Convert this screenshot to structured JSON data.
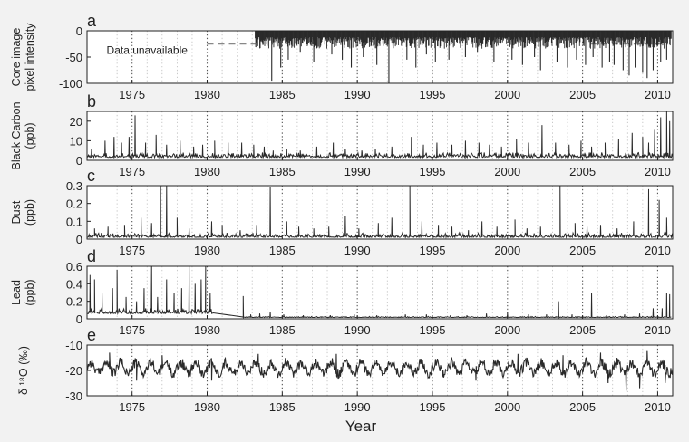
{
  "figure": {
    "background": "#f2f2f2",
    "line_color": "#2a2a2a",
    "x_axis_label": "Year"
  },
  "chart_data": [
    {
      "panel": "a",
      "type": "line",
      "ylabel": [
        "Core image",
        "pixel intensity"
      ],
      "xlim": [
        1972,
        2011
      ],
      "ylim": [
        -100,
        0
      ],
      "yticks": [
        0,
        -50,
        -100
      ],
      "xticks": [
        1975,
        1980,
        1985,
        1990,
        1995,
        2000,
        2005,
        2010
      ],
      "grid": "vertical-dotted",
      "annotation": "Data unavailable",
      "series": [
        {
          "style": "dashed",
          "color": "#888888",
          "x": [
            1980,
            1983.2
          ],
          "y": [
            -25,
            -25
          ]
        },
        {
          "style": "dashed",
          "color": "#888888",
          "x": [
            2005.5,
            2010.7
          ],
          "y": [
            -25,
            -25
          ]
        },
        {
          "style": "solid",
          "x_start": 1983.2,
          "x_end": 2010.9,
          "base": -12,
          "spikes": [
            [
              1984.3,
              -95
            ],
            [
              1984.9,
              -70
            ],
            [
              1985.4,
              -55
            ],
            [
              1986.2,
              -40
            ],
            [
              1987.1,
              -60
            ],
            [
              1988.3,
              -45
            ],
            [
              1989.0,
              -55
            ],
            [
              1989.6,
              -70
            ],
            [
              1990.4,
              -50
            ],
            [
              1991.3,
              -65
            ],
            [
              1992.1,
              -100
            ],
            [
              1993.3,
              -55
            ],
            [
              1993.9,
              -70
            ],
            [
              1994.6,
              -45
            ],
            [
              1995.2,
              -60
            ],
            [
              1996.1,
              -55
            ],
            [
              1997.2,
              -50
            ],
            [
              1998.0,
              -40
            ],
            [
              1999.1,
              -60
            ],
            [
              2000.3,
              -55
            ],
            [
              2001.0,
              -65
            ],
            [
              2001.8,
              -50
            ],
            [
              2002.2,
              -75
            ],
            [
              2003.3,
              -60
            ],
            [
              2004.0,
              -70
            ],
            [
              2004.6,
              -55
            ],
            [
              2005.2,
              -65
            ],
            [
              2005.7,
              -50
            ],
            [
              2006.3,
              -70
            ],
            [
              2006.8,
              -60
            ],
            [
              2007.1,
              -65
            ],
            [
              2007.7,
              -75
            ],
            [
              2008.1,
              -85
            ],
            [
              2008.5,
              -70
            ],
            [
              2009.0,
              -80
            ],
            [
              2009.3,
              -90
            ],
            [
              2009.7,
              -75
            ],
            [
              2010.2,
              -60
            ],
            [
              2010.6,
              -55
            ]
          ]
        }
      ]
    },
    {
      "panel": "b",
      "type": "line",
      "ylabel": [
        "Black Carbon",
        "(ppb)"
      ],
      "xlim": [
        1972,
        2011
      ],
      "ylim": [
        0,
        25
      ],
      "yticks": [
        0,
        10,
        20
      ],
      "xticks": [
        1975,
        1980,
        1985,
        1990,
        1995,
        2000,
        2005,
        2010
      ],
      "grid": "vertical-dotted",
      "base": 1.5,
      "noise": 2.5,
      "spikes": [
        [
          1972.3,
          6
        ],
        [
          1973.2,
          10
        ],
        [
          1973.8,
          12
        ],
        [
          1974.3,
          9
        ],
        [
          1974.8,
          12
        ],
        [
          1975.2,
          23
        ],
        [
          1975.9,
          9
        ],
        [
          1976.6,
          13
        ],
        [
          1977.3,
          8
        ],
        [
          1978.2,
          10
        ],
        [
          1979.1,
          7
        ],
        [
          1979.7,
          8
        ],
        [
          1980.5,
          10
        ],
        [
          1981.4,
          9
        ],
        [
          1982.3,
          9
        ],
        [
          1983.1,
          8
        ],
        [
          1983.8,
          7
        ],
        [
          1984.4,
          5
        ],
        [
          1985.3,
          6
        ],
        [
          1986.2,
          5
        ],
        [
          1987.3,
          7
        ],
        [
          1988.4,
          9
        ],
        [
          1989.2,
          6
        ],
        [
          1990.3,
          5
        ],
        [
          1991.2,
          6
        ],
        [
          1992.3,
          7
        ],
        [
          1993.6,
          12
        ],
        [
          1994.4,
          8
        ],
        [
          1995.3,
          9
        ],
        [
          1996.3,
          8
        ],
        [
          1997.2,
          10
        ],
        [
          1998.1,
          9
        ],
        [
          1998.8,
          8
        ],
        [
          1999.6,
          7
        ],
        [
          2000.6,
          11
        ],
        [
          2001.4,
          9
        ],
        [
          2002.3,
          18
        ],
        [
          2003.2,
          9
        ],
        [
          2004.1,
          8
        ],
        [
          2004.9,
          10
        ],
        [
          2005.6,
          7
        ],
        [
          2006.5,
          9
        ],
        [
          2007.4,
          11
        ],
        [
          2008.3,
          14
        ],
        [
          2009.0,
          12
        ],
        [
          2009.4,
          9
        ],
        [
          2009.8,
          16
        ],
        [
          2010.2,
          22
        ],
        [
          2010.6,
          25
        ],
        [
          2010.8,
          20
        ]
      ]
    },
    {
      "panel": "c",
      "type": "line",
      "ylabel": [
        "Dust",
        "(ppb)"
      ],
      "xlim": [
        1972,
        2011
      ],
      "ylim": [
        0,
        0.3
      ],
      "yticks": [
        0,
        0.1,
        0.2,
        0.3
      ],
      "xticks": [
        1975,
        1980,
        1985,
        1990,
        1995,
        2000,
        2005,
        2010
      ],
      "grid": "vertical-dotted",
      "base": 0.01,
      "noise": 0.025,
      "spikes": [
        [
          1972.5,
          0.06
        ],
        [
          1973.4,
          0.07
        ],
        [
          1974.5,
          0.08
        ],
        [
          1975.6,
          0.12
        ],
        [
          1976.3,
          0.09
        ],
        [
          1976.9,
          0.3
        ],
        [
          1977.3,
          0.3
        ],
        [
          1978.0,
          0.12
        ],
        [
          1978.8,
          0.06
        ],
        [
          1980.3,
          0.1
        ],
        [
          1981.0,
          0.08
        ],
        [
          1982.2,
          0.05
        ],
        [
          1983.3,
          0.08
        ],
        [
          1984.2,
          0.29
        ],
        [
          1985.3,
          0.1
        ],
        [
          1986.1,
          0.07
        ],
        [
          1987.1,
          0.06
        ],
        [
          1988.1,
          0.07
        ],
        [
          1989.2,
          0.13
        ],
        [
          1990.1,
          0.06
        ],
        [
          1991.4,
          0.09
        ],
        [
          1992.3,
          0.12
        ],
        [
          1993.5,
          0.3
        ],
        [
          1994.3,
          0.1
        ],
        [
          1995.4,
          0.08
        ],
        [
          1996.3,
          0.07
        ],
        [
          1997.4,
          0.05
        ],
        [
          1998.3,
          0.1
        ],
        [
          1999.3,
          0.07
        ],
        [
          2000.5,
          0.11
        ],
        [
          2001.3,
          0.06
        ],
        [
          2002.2,
          0.07
        ],
        [
          2003.5,
          0.3
        ],
        [
          2004.5,
          0.09
        ],
        [
          2005.3,
          0.07
        ],
        [
          2006.2,
          0.08
        ],
        [
          2007.3,
          0.06
        ],
        [
          2008.4,
          0.1
        ],
        [
          2009.4,
          0.28
        ],
        [
          2010.1,
          0.22
        ],
        [
          2010.6,
          0.12
        ]
      ]
    },
    {
      "panel": "d",
      "type": "line",
      "ylabel": [
        "Lead",
        "(ppb)"
      ],
      "xlim": [
        1972,
        2011
      ],
      "ylim": [
        0,
        0.6
      ],
      "yticks": [
        0,
        0.2,
        0.4,
        0.6
      ],
      "xticks": [
        1975,
        1980,
        1985,
        1990,
        1995,
        2000,
        2005,
        2010
      ],
      "grid": "vertical-dotted",
      "gap": [
        1980.4,
        1982.4
      ],
      "segments": [
        {
          "x_start": 1972,
          "x_end": 1980.4,
          "base": 0.06,
          "noise": 0.06,
          "spikes": [
            [
              1972.2,
              0.5
            ],
            [
              1972.5,
              0.45
            ],
            [
              1973.0,
              0.3
            ],
            [
              1973.7,
              0.35
            ],
            [
              1974.0,
              0.56
            ],
            [
              1974.6,
              0.25
            ],
            [
              1975.3,
              0.2
            ],
            [
              1975.8,
              0.35
            ],
            [
              1976.3,
              0.6
            ],
            [
              1976.7,
              0.25
            ],
            [
              1977.3,
              0.45
            ],
            [
              1977.8,
              0.3
            ],
            [
              1978.3,
              0.35
            ],
            [
              1978.8,
              0.6
            ],
            [
              1979.2,
              0.4
            ],
            [
              1979.6,
              0.45
            ],
            [
              1979.9,
              0.6
            ],
            [
              1980.2,
              0.3
            ]
          ]
        },
        {
          "x_start": 1982.4,
          "x_end": 2010.9,
          "base": 0.015,
          "noise": 0.012,
          "spikes": [
            [
              1982.4,
              0.26
            ],
            [
              1982.9,
              0.05
            ],
            [
              1983.5,
              0.06
            ],
            [
              1984.2,
              0.08
            ],
            [
              1985.1,
              0.05
            ],
            [
              1986.4,
              0.04
            ],
            [
              1988.2,
              0.04
            ],
            [
              1989.8,
              0.05
            ],
            [
              1991.3,
              0.04
            ],
            [
              1993.2,
              0.05
            ],
            [
              1994.6,
              0.05
            ],
            [
              1996.2,
              0.04
            ],
            [
              1997.3,
              0.04
            ],
            [
              1998.6,
              0.06
            ],
            [
              2000.0,
              0.07
            ],
            [
              2001.4,
              0.05
            ],
            [
              2002.6,
              0.05
            ],
            [
              2003.4,
              0.2
            ],
            [
              2004.3,
              0.05
            ],
            [
              2005.6,
              0.3
            ],
            [
              2006.6,
              0.04
            ],
            [
              2007.8,
              0.05
            ],
            [
              2008.8,
              0.06
            ],
            [
              2009.7,
              0.12
            ],
            [
              2010.3,
              0.12
            ],
            [
              2010.6,
              0.3
            ],
            [
              2010.8,
              0.28
            ]
          ]
        }
      ]
    },
    {
      "panel": "e",
      "type": "line",
      "ylabel": [
        "δ ¹⁸O (‰)"
      ],
      "xlim": [
        1972,
        2011
      ],
      "ylim": [
        -30,
        -10
      ],
      "yticks": [
        -10,
        -20,
        -30
      ],
      "xticks": [
        1975,
        1980,
        1985,
        1990,
        1995,
        2000,
        2005,
        2010
      ],
      "grid": "vertical-dotted",
      "base": -19,
      "amplitude": 3,
      "extremes": [
        [
          1973.5,
          -13
        ],
        [
          1974.2,
          -15
        ],
        [
          1975.3,
          -24
        ],
        [
          1977.0,
          -14
        ],
        [
          1980.3,
          -24
        ],
        [
          1983.4,
          -13.5
        ],
        [
          1988.6,
          -13.5
        ],
        [
          1997.9,
          -24
        ],
        [
          2000.7,
          -13.5
        ],
        [
          2003.7,
          -14
        ],
        [
          2006.2,
          -13
        ],
        [
          2006.7,
          -25
        ],
        [
          2007.9,
          -28
        ],
        [
          2008.8,
          -27
        ],
        [
          2009.3,
          -12
        ],
        [
          2010.5,
          -25
        ]
      ]
    }
  ]
}
